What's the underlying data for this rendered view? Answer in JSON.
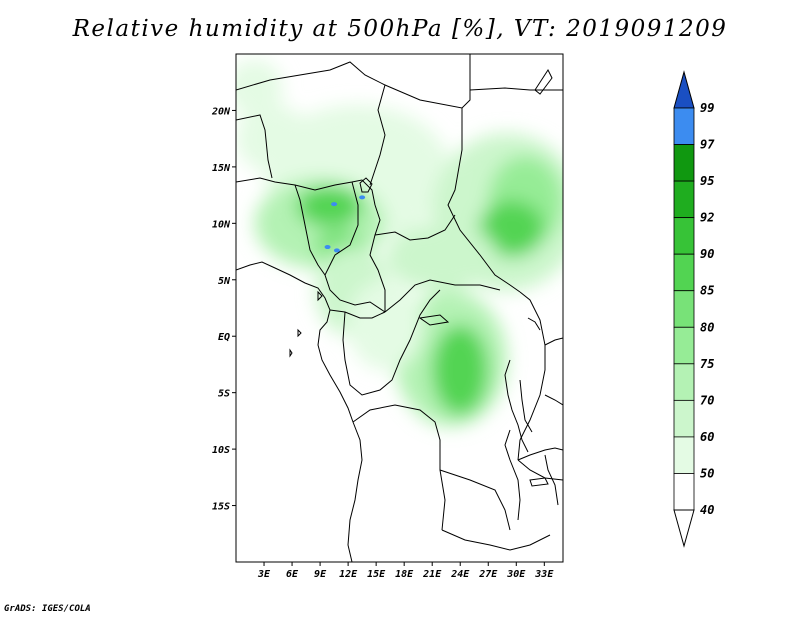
{
  "title": "Relative humidity at 500hPa [%], VT: 2019091209",
  "credit": "GrADS: IGES/COLA",
  "map": {
    "lon_range": [
      0,
      35
    ],
    "lat_range": [
      -20,
      25
    ],
    "lat_ticks": [
      {
        "value": 20,
        "label": "20N"
      },
      {
        "value": 15,
        "label": "15N"
      },
      {
        "value": 10,
        "label": "10N"
      },
      {
        "value": 5,
        "label": "5N"
      },
      {
        "value": 0,
        "label": "EQ"
      },
      {
        "value": -5,
        "label": "5S"
      },
      {
        "value": -10,
        "label": "10S"
      },
      {
        "value": -15,
        "label": "15S"
      }
    ],
    "lon_ticks": [
      {
        "value": 3,
        "label": "3E"
      },
      {
        "value": 6,
        "label": "6E"
      },
      {
        "value": 9,
        "label": "9E"
      },
      {
        "value": 12,
        "label": "12E"
      },
      {
        "value": 15,
        "label": "15E"
      },
      {
        "value": 18,
        "label": "18E"
      },
      {
        "value": 21,
        "label": "21E"
      },
      {
        "value": 24,
        "label": "24E"
      },
      {
        "value": 27,
        "label": "27E"
      },
      {
        "value": 30,
        "label": "30E"
      },
      {
        "value": 33,
        "label": "33E"
      }
    ],
    "humidity_blobs": [
      {
        "lon": 13,
        "lat": 14.5,
        "rx": 10,
        "ry": 6,
        "level": 50
      },
      {
        "lon": 29,
        "lat": 11,
        "rx": 8,
        "ry": 7,
        "level": 60
      },
      {
        "lon": 31,
        "lat": 12,
        "rx": 4,
        "ry": 4,
        "level": 75
      },
      {
        "lon": 29.5,
        "lat": 9.5,
        "rx": 3.5,
        "ry": 2.5,
        "level": 85
      },
      {
        "lon": 9,
        "lat": 10,
        "rx": 7,
        "ry": 4,
        "level": 70
      },
      {
        "lon": 10,
        "lat": 11.5,
        "rx": 3.5,
        "ry": 1.8,
        "level": 85
      },
      {
        "lon": 11,
        "lat": 8,
        "rx": 2.5,
        "ry": 1.5,
        "level": 80
      },
      {
        "lon": 12.5,
        "lat": 4,
        "rx": 4,
        "ry": 4,
        "level": 60
      },
      {
        "lon": 22,
        "lat": 7,
        "rx": 6,
        "ry": 3,
        "level": 60
      },
      {
        "lon": 23,
        "lat": -2,
        "rx": 6,
        "ry": 6,
        "level": 70
      },
      {
        "lon": 24,
        "lat": -3,
        "rx": 3,
        "ry": 4,
        "level": 85
      },
      {
        "lon": 16,
        "lat": 1,
        "rx": 4,
        "ry": 4,
        "level": 50
      },
      {
        "lon": 4,
        "lat": 17.5,
        "rx": 4,
        "ry": 3,
        "level": 50
      },
      {
        "lon": 2,
        "lat": 22,
        "rx": 3,
        "ry": 2.5,
        "level": 50
      }
    ],
    "high_spots": [
      {
        "lon": 10.5,
        "lat": 11.7,
        "level": 97
      },
      {
        "lon": 13.5,
        "lat": 12.3,
        "level": 97
      },
      {
        "lon": 10.8,
        "lat": 7.6,
        "level": 97
      },
      {
        "lon": 9.8,
        "lat": 7.9,
        "level": 97
      }
    ]
  },
  "colorbar": {
    "levels": [
      {
        "label": "99",
        "color": "#1e64dc"
      },
      {
        "label": "97",
        "color": "#3c8cf0"
      },
      {
        "label": "95",
        "color": "#109810"
      },
      {
        "label": "92",
        "color": "#1fad1f"
      },
      {
        "label": "90",
        "color": "#37c337"
      },
      {
        "label": "85",
        "color": "#52d452"
      },
      {
        "label": "80",
        "color": "#78e278"
      },
      {
        "label": "75",
        "color": "#96ec96"
      },
      {
        "label": "70",
        "color": "#b4f2b4"
      },
      {
        "label": "60",
        "color": "#ccf6cc"
      },
      {
        "label": "50",
        "color": "#e4fbe4"
      },
      {
        "label": "40",
        "color": "#ffffff"
      }
    ],
    "top_color": "#1a4fc2"
  }
}
